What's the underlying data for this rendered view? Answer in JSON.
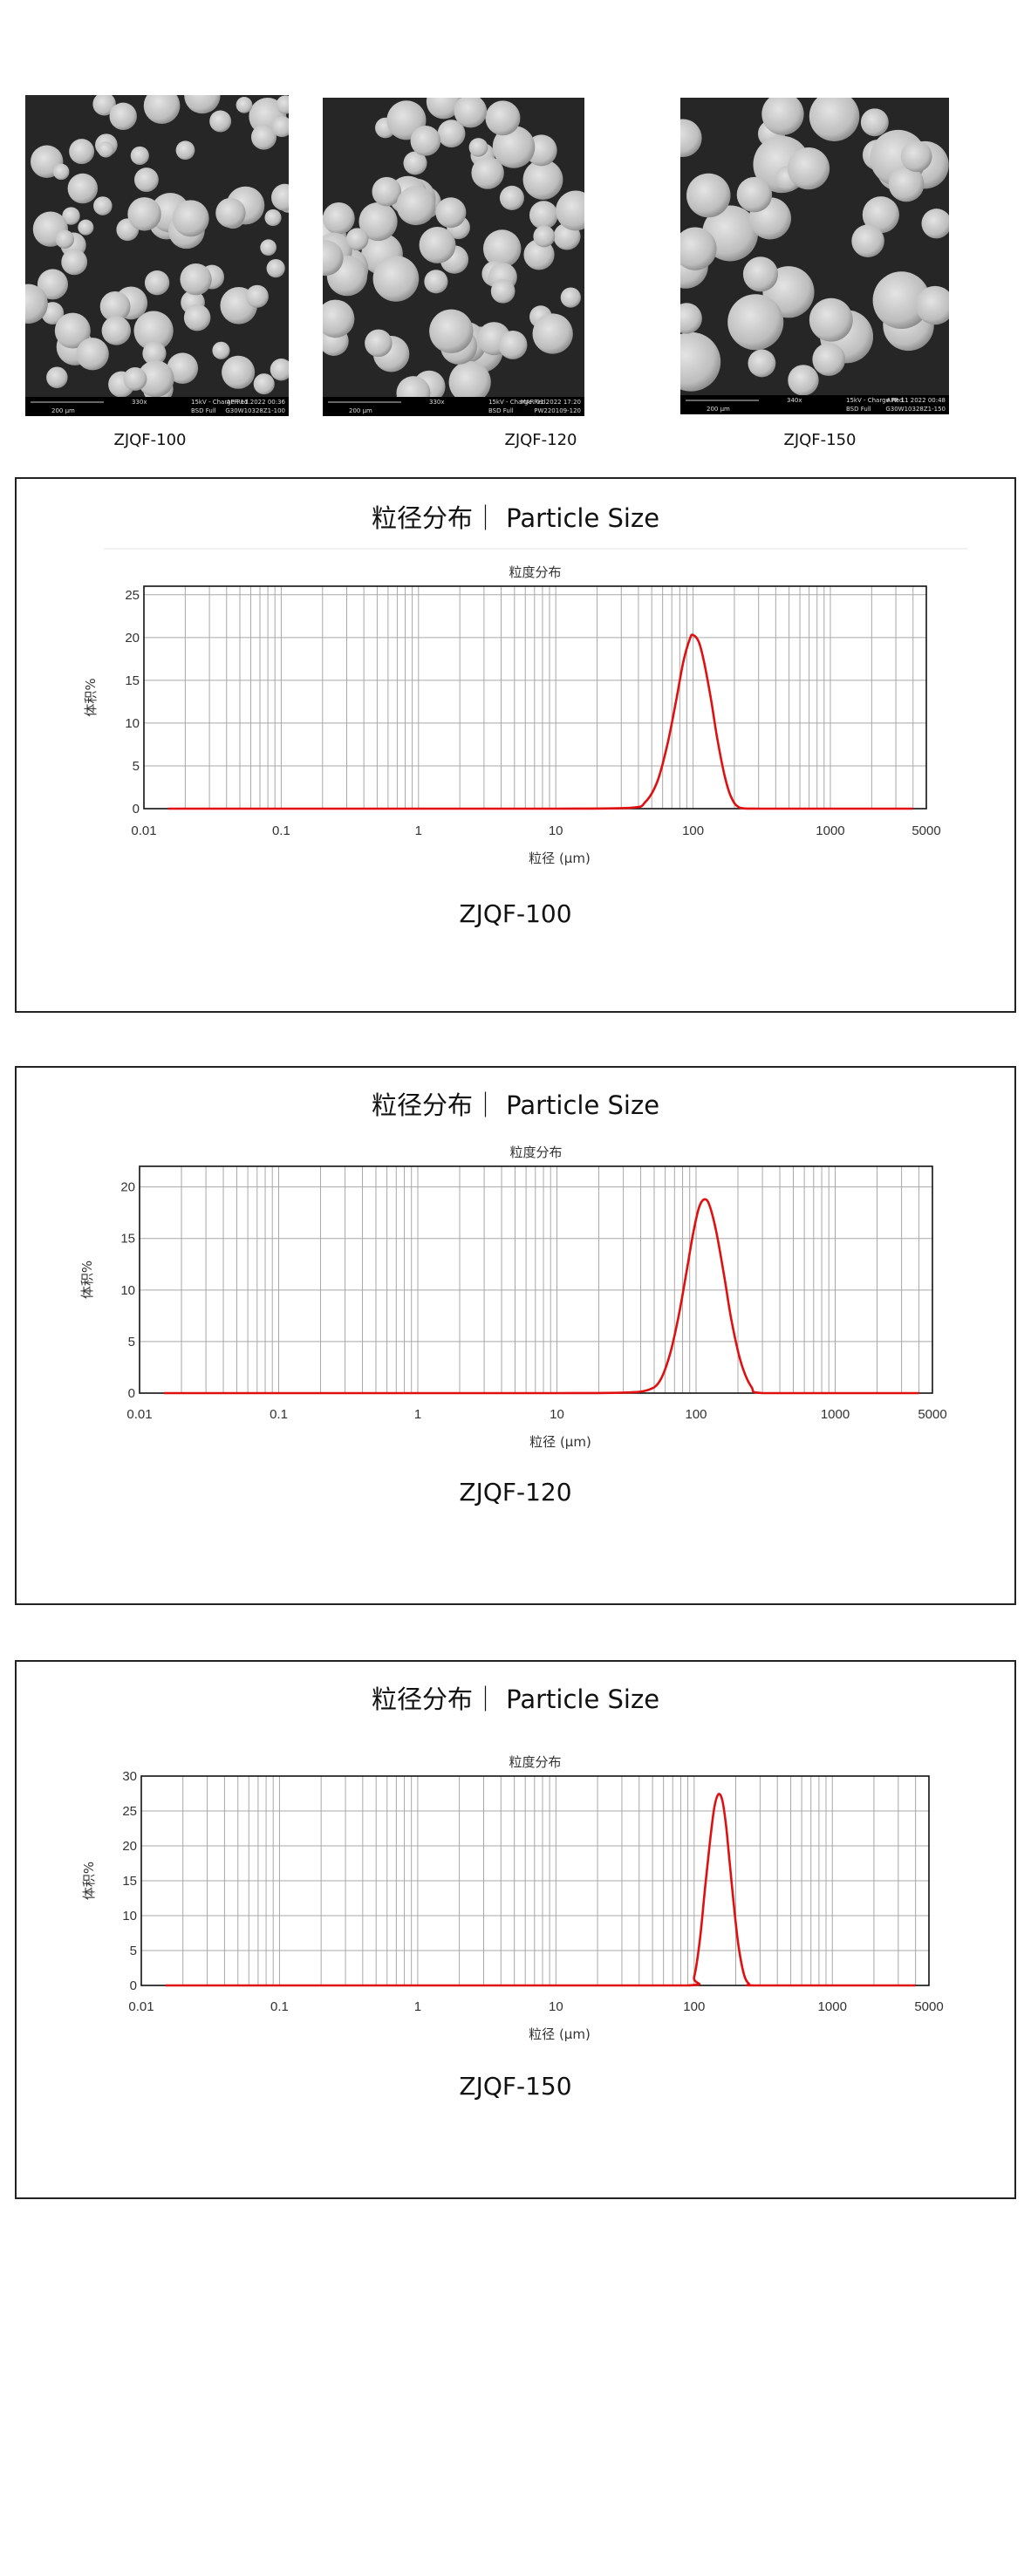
{
  "sem_images": [
    {
      "label": "ZJQF-100",
      "scale_bar": "200 µm",
      "magnification": "330x",
      "voltage": "15kV - Charge Red.",
      "detector": "BSD Full",
      "date": "APR 11 2022 00:36",
      "sample_id": "G30W10328Z1-100"
    },
    {
      "label": "ZJQF-120",
      "scale_bar": "200 µm",
      "magnification": "330x",
      "voltage": "15kV - Charge Red.",
      "detector": "BSD Full",
      "date": "MAR 01 2022 17:20",
      "sample_id": "PW220109-120"
    },
    {
      "label": "ZJQF-150",
      "scale_bar": "200 µm",
      "magnification": "340x",
      "voltage": "15kV - Charge Red.",
      "detector": "BSD Full",
      "date": "APR 11 2022 00:48",
      "sample_id": "G30W10328Z1-150"
    }
  ],
  "panels": [
    {
      "title": "粒径分布｜ Particle Size",
      "caption": "ZJQF-100"
    },
    {
      "title": "粒径分布｜ Particle Size",
      "caption": "ZJQF-120"
    },
    {
      "title": "粒径分布｜ Particle Size",
      "caption": "ZJQF-150"
    }
  ],
  "colors": {
    "curve": "#e01010",
    "grid": "#a8a8a8",
    "axis": "#111111"
  },
  "chart_data": [
    {
      "type": "line",
      "title": "粒度分布",
      "sample": "ZJQF-100",
      "xlabel": "粒径 (µm)",
      "ylabel": "体积%",
      "xscale": "log",
      "xlim": [
        0.01,
        5000
      ],
      "ylim": [
        0,
        26
      ],
      "xticks": [
        "0.01",
        "0.1",
        "1",
        "10",
        "100",
        "1000",
        "5000"
      ],
      "yticks": [
        0,
        5,
        10,
        15,
        20,
        25
      ],
      "grid": true,
      "legend": "none",
      "series": [
        {
          "name": "ZJQF-100",
          "x": [
            0.015,
            1,
            10,
            35,
            45,
            55,
            65,
            75,
            85,
            95,
            100,
            110,
            120,
            135,
            150,
            170,
            190,
            220,
            300,
            1000,
            4000
          ],
          "y": [
            0,
            0,
            0,
            0.1,
            0.8,
            3.2,
            7.5,
            12.5,
            17.2,
            19.9,
            20.3,
            19.5,
            17.2,
            12.8,
            8.2,
            3.8,
            1.3,
            0.1,
            0,
            0,
            0
          ]
        }
      ],
      "peak": {
        "x": 100,
        "y": 20.3
      }
    },
    {
      "type": "line",
      "title": "粒度分布",
      "sample": "ZJQF-120",
      "xlabel": "粒径 (µm)",
      "ylabel": "体积%",
      "xscale": "log",
      "xlim": [
        0.01,
        5000
      ],
      "ylim": [
        0,
        22
      ],
      "xticks": [
        "0.01",
        "0.1",
        "1",
        "10",
        "100",
        "1000",
        "5000"
      ],
      "yticks": [
        0,
        5,
        10,
        15,
        20
      ],
      "grid": true,
      "legend": "none",
      "series": [
        {
          "name": "ZJQF-120",
          "x": [
            0.015,
            1,
            10,
            30,
            45,
            55,
            65,
            75,
            85,
            95,
            105,
            115,
            125,
            140,
            160,
            180,
            210,
            250,
            300,
            1000,
            4000
          ],
          "y": [
            0,
            0,
            0,
            0.05,
            0.3,
            1.2,
            3.8,
            7.5,
            11.6,
            15.4,
            18.0,
            18.8,
            18.2,
            15.6,
            11.2,
            7.0,
            3.0,
            0.6,
            0,
            0,
            0
          ]
        }
      ],
      "peak": {
        "x": 115,
        "y": 18.8
      }
    },
    {
      "type": "line",
      "title": "粒度分布",
      "sample": "ZJQF-150",
      "xlabel": "粒径 (µm)",
      "ylabel": "体积%",
      "xscale": "log",
      "xlim": [
        0.01,
        5000
      ],
      "ylim": [
        0,
        30
      ],
      "xticks": [
        "0.01",
        "0.1",
        "1",
        "10",
        "100",
        "1000",
        "5000"
      ],
      "yticks": [
        0,
        5,
        10,
        15,
        20,
        25,
        30
      ],
      "grid": true,
      "legend": "none",
      "series": [
        {
          "name": "ZJQF-150",
          "x": [
            0.015,
            1,
            10,
            90,
            100,
            110,
            120,
            130,
            140,
            150,
            160,
            170,
            180,
            195,
            210,
            230,
            250,
            270,
            1000,
            4000
          ],
          "y": [
            0,
            0,
            0,
            0,
            1.2,
            6.5,
            14.0,
            20.5,
            25.5,
            27.4,
            26.5,
            23.0,
            18.0,
            11.0,
            5.5,
            1.5,
            0.2,
            0,
            0,
            0
          ]
        }
      ],
      "peak": {
        "x": 150,
        "y": 27.4
      }
    }
  ]
}
